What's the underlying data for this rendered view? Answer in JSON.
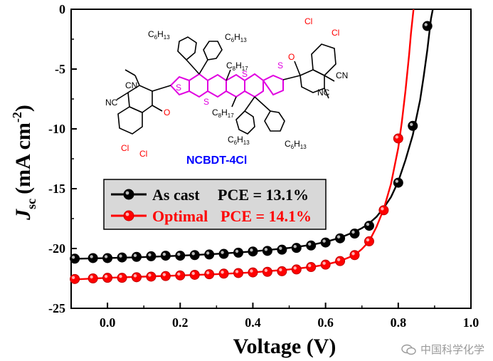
{
  "chart_data": {
    "type": "line",
    "title": "",
    "xlabel": "Voltage (V)",
    "ylabel_main": "J",
    "ylabel_sub": "sc",
    "ylabel_unit": "(mA cm",
    "ylabel_exp": "-2",
    "ylabel_close": ")",
    "xlim": [
      -0.1,
      1.0
    ],
    "ylim": [
      -25,
      0
    ],
    "xticks": [
      0.0,
      0.2,
      0.4,
      0.6,
      0.8,
      1.0
    ],
    "xtick_labels": [
      "0.0",
      "0.2",
      "0.4",
      "0.6",
      "0.8",
      "1.0"
    ],
    "yticks": [
      0,
      -5,
      -10,
      -15,
      -20,
      -25
    ],
    "ytick_labels": [
      "0",
      "-5",
      "-10",
      "-15",
      "-20",
      "-25"
    ],
    "grid": false,
    "legend_position": "lower-left",
    "series": [
      {
        "name": "As cast",
        "pce_label": "PCE = 13.1%",
        "color": "#000000",
        "marker_face": "#000000",
        "curve": [
          [
            -0.1,
            -20.87
          ],
          [
            0.0,
            -20.8
          ],
          [
            0.1,
            -20.72
          ],
          [
            0.2,
            -20.6
          ],
          [
            0.3,
            -20.45
          ],
          [
            0.4,
            -20.25
          ],
          [
            0.5,
            -19.95
          ],
          [
            0.56,
            -19.7
          ],
          [
            0.6,
            -19.45
          ],
          [
            0.64,
            -19.1
          ],
          [
            0.68,
            -18.6
          ],
          [
            0.7,
            -18.3
          ],
          [
            0.72,
            -17.9
          ],
          [
            0.74,
            -17.35
          ],
          [
            0.76,
            -16.6
          ],
          [
            0.78,
            -15.7
          ],
          [
            0.8,
            -14.4
          ],
          [
            0.82,
            -12.6
          ],
          [
            0.84,
            -10.5
          ],
          [
            0.86,
            -7.6
          ],
          [
            0.87,
            -5.6
          ],
          [
            0.88,
            -3.4
          ],
          [
            0.89,
            -0.8
          ],
          [
            0.895,
            0.0
          ]
        ],
        "markers": [
          [
            -0.09,
            -20.85
          ],
          [
            -0.04,
            -20.8
          ],
          [
            0.0,
            -20.8
          ],
          [
            0.04,
            -20.75
          ],
          [
            0.08,
            -20.7
          ],
          [
            0.12,
            -20.65
          ],
          [
            0.16,
            -20.6
          ],
          [
            0.2,
            -20.6
          ],
          [
            0.24,
            -20.55
          ],
          [
            0.28,
            -20.5
          ],
          [
            0.32,
            -20.45
          ],
          [
            0.36,
            -20.35
          ],
          [
            0.4,
            -20.25
          ],
          [
            0.44,
            -20.2
          ],
          [
            0.48,
            -20.1
          ],
          [
            0.52,
            -19.95
          ],
          [
            0.56,
            -19.75
          ],
          [
            0.6,
            -19.5
          ],
          [
            0.64,
            -19.15
          ],
          [
            0.68,
            -18.75
          ],
          [
            0.72,
            -18.1
          ],
          [
            0.8,
            -14.5
          ],
          [
            0.84,
            -9.75
          ],
          [
            0.88,
            -1.4
          ]
        ]
      },
      {
        "name": "Optimal",
        "pce_label": "PCE = 14.1%",
        "color": "#ff0000",
        "marker_face": "#ff0000",
        "curve": [
          [
            -0.1,
            -22.6
          ],
          [
            0.0,
            -22.45
          ],
          [
            0.1,
            -22.35
          ],
          [
            0.2,
            -22.25
          ],
          [
            0.3,
            -22.15
          ],
          [
            0.4,
            -22.0
          ],
          [
            0.5,
            -21.75
          ],
          [
            0.56,
            -21.55
          ],
          [
            0.6,
            -21.35
          ],
          [
            0.64,
            -21.05
          ],
          [
            0.68,
            -20.55
          ],
          [
            0.7,
            -20.05
          ],
          [
            0.72,
            -19.4
          ],
          [
            0.74,
            -18.2
          ],
          [
            0.76,
            -16.7
          ],
          [
            0.78,
            -14.6
          ],
          [
            0.8,
            -11.6
          ],
          [
            0.81,
            -9.4
          ],
          [
            0.82,
            -6.8
          ],
          [
            0.83,
            -3.8
          ],
          [
            0.835,
            -2.0
          ],
          [
            0.842,
            0.0
          ]
        ],
        "markers": [
          [
            -0.09,
            -22.55
          ],
          [
            -0.04,
            -22.5
          ],
          [
            0.0,
            -22.45
          ],
          [
            0.04,
            -22.45
          ],
          [
            0.08,
            -22.4
          ],
          [
            0.12,
            -22.35
          ],
          [
            0.16,
            -22.3
          ],
          [
            0.2,
            -22.25
          ],
          [
            0.24,
            -22.2
          ],
          [
            0.28,
            -22.15
          ],
          [
            0.32,
            -22.1
          ],
          [
            0.36,
            -22.05
          ],
          [
            0.4,
            -22.0
          ],
          [
            0.44,
            -21.95
          ],
          [
            0.48,
            -21.9
          ],
          [
            0.52,
            -21.75
          ],
          [
            0.56,
            -21.55
          ],
          [
            0.6,
            -21.35
          ],
          [
            0.64,
            -21.05
          ],
          [
            0.68,
            -20.55
          ],
          [
            0.72,
            -19.4
          ],
          [
            0.76,
            -16.8
          ],
          [
            0.8,
            -10.8
          ]
        ]
      }
    ],
    "annotations": {
      "molecule_name": "NCBDT-4Cl",
      "molecule_name_color": "#0000ff",
      "core_color": "#e000e0",
      "halogen_color": "#ff0000",
      "substituents": {
        "hexyl_label": "C",
        "hexyl_sub": "6",
        "hexyl_h": "H",
        "hexyl_hsub": "13",
        "octyl_label": "C",
        "octyl_sub": "8",
        "octyl_h": "H",
        "octyl_hsub": "17"
      },
      "atoms": {
        "sulfur": "S",
        "chlorine": "Cl",
        "oxygen": "O",
        "nitrile": "CN",
        "nitrile_rev": "NC"
      }
    }
  },
  "watermark": {
    "text": "中国科学化学"
  }
}
